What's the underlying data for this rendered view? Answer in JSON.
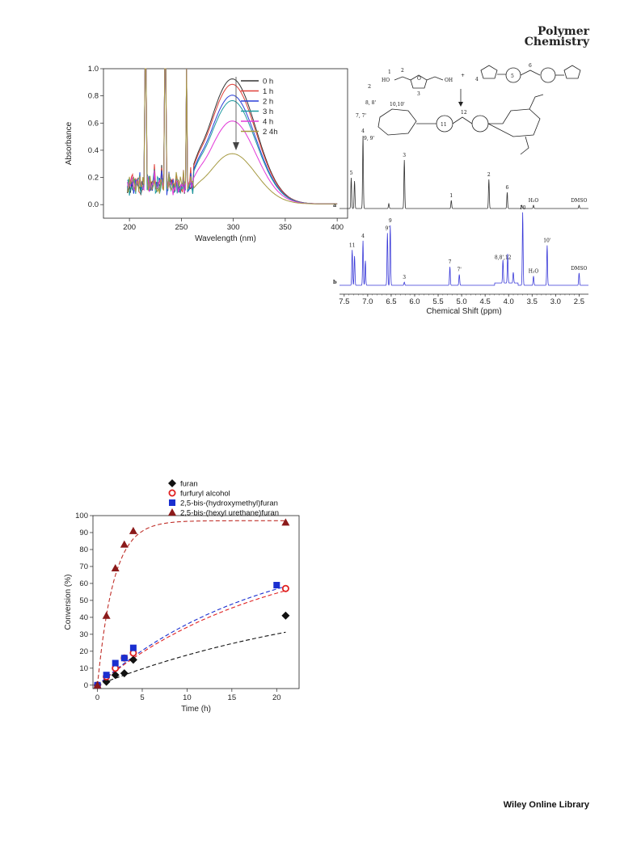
{
  "header": {
    "journal_line1": "Polymer",
    "journal_line2": "Chemistry"
  },
  "footer": {
    "publisher": "Wiley Online Library"
  },
  "chart_data": [
    {
      "type": "line",
      "xlabel": "Wavelength (nm)",
      "ylabel": "Absorbance",
      "xlim": [
        175,
        410
      ],
      "ylim": [
        -0.1,
        1.0
      ],
      "xticks": [
        "200",
        "250",
        "300",
        "350",
        "400"
      ],
      "yticks": [
        "0.0",
        "0.2",
        "0.4",
        "0.6",
        "0.8",
        "1.0"
      ],
      "legend_position": "top-right",
      "annotation": "downward arrow: absorbance decreases with time",
      "series": [
        {
          "name": "0 h",
          "color": "#333333",
          "peak_x": 299,
          "peak": 0.92
        },
        {
          "name": "1 h",
          "color": "#e0403a",
          "peak_x": 299,
          "peak": 0.88
        },
        {
          "name": "2 h",
          "color": "#2b3fd8",
          "peak_x": 299,
          "peak": 0.8
        },
        {
          "name": "3 h",
          "color": "#1d9aa0",
          "peak_x": 299,
          "peak": 0.76
        },
        {
          "name": "4 h",
          "color": "#e23ad8",
          "peak_x": 299,
          "peak": 0.61
        },
        {
          "name": "2 4h",
          "color": "#a69a42",
          "peak_x": 299,
          "peak": 0.37
        }
      ]
    },
    {
      "type": "line",
      "xlabel": "Chemical Shift (ppm)",
      "ylabel": "",
      "xlim": [
        7.6,
        2.3
      ],
      "xticks": [
        "7.5",
        "7.0",
        "6.5",
        "6.0",
        "5.5",
        "5.0",
        "4.5",
        "4.0",
        "3.5",
        "3.0",
        "2.5"
      ],
      "series": [
        {
          "name": "a",
          "color": "#333333",
          "peaks": [
            {
              "ppm": 7.35,
              "h": 0.38,
              "label": "5"
            },
            {
              "ppm": 7.28,
              "h": 0.34,
              "label": ""
            },
            {
              "ppm": 7.1,
              "h": 0.9,
              "label": "4"
            },
            {
              "ppm": 6.55,
              "h": 0.06,
              "label": ""
            },
            {
              "ppm": 6.22,
              "h": 0.6,
              "label": "3"
            },
            {
              "ppm": 5.22,
              "h": 0.1,
              "label": "1"
            },
            {
              "ppm": 4.42,
              "h": 0.36,
              "label": "2"
            },
            {
              "ppm": 4.03,
              "h": 0.2,
              "label": "6"
            },
            {
              "ppm": 3.72,
              "h": 0.04,
              "label": ""
            },
            {
              "ppm": 3.47,
              "h": 0.04,
              "label": "H2O"
            },
            {
              "ppm": 2.5,
              "h": 0.04,
              "label": "DMSO"
            }
          ]
        },
        {
          "name": "b",
          "color": "#3a3ad8",
          "peaks": [
            {
              "ppm": 7.33,
              "h": 0.46,
              "label": "11"
            },
            {
              "ppm": 7.28,
              "h": 0.38,
              "label": ""
            },
            {
              "ppm": 7.1,
              "h": 0.58,
              "label": "4"
            },
            {
              "ppm": 7.05,
              "h": 0.32,
              "label": ""
            },
            {
              "ppm": 6.58,
              "h": 0.68,
              "label": "9'"
            },
            {
              "ppm": 6.52,
              "h": 0.78,
              "label": "9"
            },
            {
              "ppm": 6.22,
              "h": 0.04,
              "label": "3"
            },
            {
              "ppm": 5.25,
              "h": 0.24,
              "label": "7"
            },
            {
              "ppm": 5.05,
              "h": 0.14,
              "label": "7'"
            },
            {
              "ppm": 4.12,
              "h": 0.3,
              "label": "8,8',12"
            },
            {
              "ppm": 4.02,
              "h": 0.38,
              "label": ""
            },
            {
              "ppm": 3.9,
              "h": 0.14,
              "label": ""
            },
            {
              "ppm": 3.7,
              "h": 0.95,
              "label": "10"
            },
            {
              "ppm": 3.47,
              "h": 0.12,
              "label": "H2O"
            },
            {
              "ppm": 3.18,
              "h": 0.52,
              "label": "10'"
            },
            {
              "ppm": 2.5,
              "h": 0.16,
              "label": "DMSO"
            }
          ]
        }
      ],
      "scheme_labels": {
        "coefficient": "2",
        "plus": "+",
        "reactant_a": "2,5-bis(hydroxymethyl)furan (numbered 1, 2, 3)",
        "reactant_b": "bismaleimide (numbered 4, 5, 6)",
        "product_labels": [
          "7, 7'",
          "8, 8'",
          "10,10'",
          "9, 9'",
          "11",
          "12"
        ]
      }
    },
    {
      "type": "scatter",
      "xlabel": "Time (h)",
      "ylabel": "Conversion (%)",
      "xlim": [
        -0.5,
        22.5
      ],
      "ylim": [
        -2,
        100
      ],
      "xticks": [
        "0",
        "5",
        "10",
        "15",
        "20"
      ],
      "yticks": [
        "0",
        "10",
        "20",
        "30",
        "40",
        "50",
        "60",
        "70",
        "80",
        "90",
        "100"
      ],
      "legend_position": "top",
      "series": [
        {
          "name": "furan",
          "marker": "diamond",
          "color": "#111111",
          "x": [
            0,
            1,
            2,
            3,
            4,
            21
          ],
          "y": [
            0,
            2,
            6,
            7,
            15,
            41
          ],
          "fit_k": 0.035,
          "fit_max": 60,
          "fit_color": "#111111"
        },
        {
          "name": "furfuryl alcohol",
          "marker": "circle-open",
          "color": "#e02020",
          "x": [
            0,
            1,
            2,
            3,
            4,
            21
          ],
          "y": [
            0,
            5,
            10,
            16,
            19,
            57
          ],
          "fit_k": 0.053,
          "fit_max": 83,
          "fit_color": "#e02020"
        },
        {
          "name": "2,5-bis-(hydroxymethyl)furan",
          "marker": "square",
          "color": "#1a2fd0",
          "x": [
            0,
            1,
            2,
            3,
            4,
            20
          ],
          "y": [
            0,
            6,
            13,
            16,
            22,
            59
          ],
          "fit_k": 0.055,
          "fit_max": 85,
          "fit_color": "#1a2fd0"
        },
        {
          "name": "2,5-bis-(hexyl urethane)furan",
          "marker": "triangle",
          "color": "#8b1a1a",
          "x": [
            0,
            1,
            2,
            3,
            4,
            21
          ],
          "y": [
            0,
            41,
            69,
            83,
            91,
            96
          ],
          "fit_k": 0.55,
          "fit_max": 97,
          "fit_color": "#c0302a"
        }
      ]
    }
  ]
}
